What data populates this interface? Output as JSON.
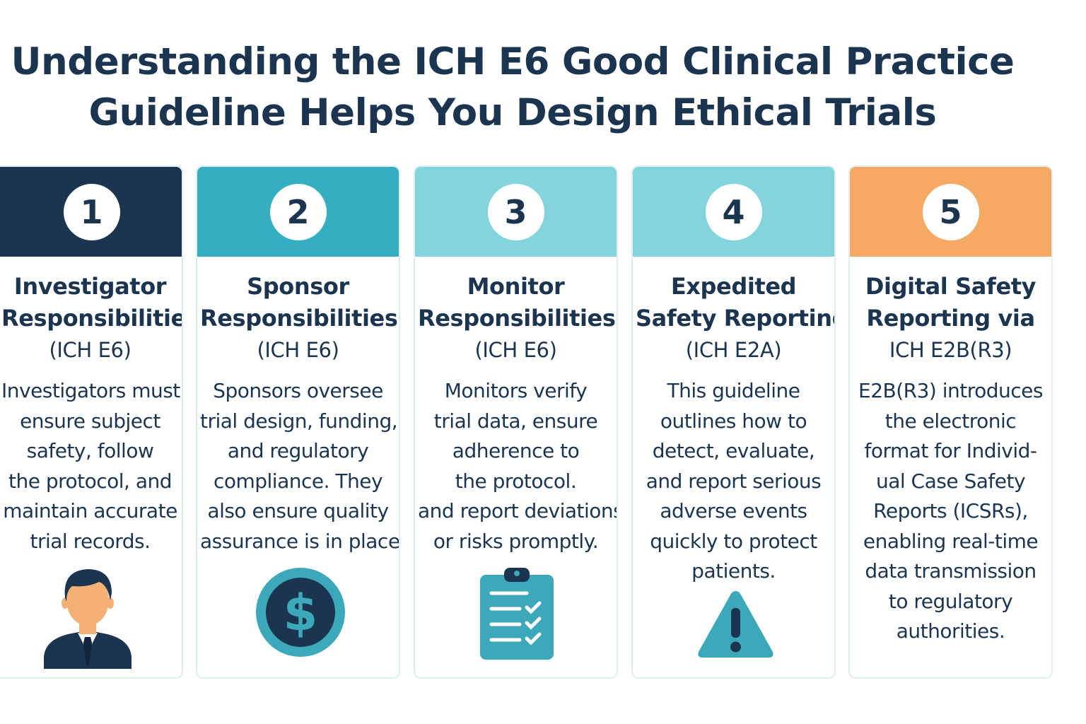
{
  "title": {
    "line1": "Understanding the ICH E6 Good Clinical Practice",
    "line2": "Guideline Helps You Design Ethical Trials"
  },
  "colors": {
    "navy": "#1b3550",
    "teal": "#36aec2",
    "light_teal": "#84d4dc",
    "orange": "#f5a963",
    "icon_teal": "#3ca9bb",
    "skin": "#f5b075"
  },
  "cards": [
    {
      "number": "1",
      "title_lines": [
        "Investigator",
        "Responsibilities",
        "(ICH E6)"
      ],
      "body_lines": [
        "Investigators must",
        "ensure subject",
        "safety, follow",
        "the protocol, and",
        "maintain accurate",
        "trial records."
      ],
      "icon": "investigator-person-icon"
    },
    {
      "number": "2",
      "title_lines": [
        "Sponsor",
        "Responsibilities",
        "(ICH E6)"
      ],
      "body_lines": [
        "Sponsors oversee",
        "trial design, funding,",
        "and regulatory",
        "compliance. They",
        "also ensure quality",
        "assurance is in place"
      ],
      "icon": "dollar-coin-icon"
    },
    {
      "number": "3",
      "title_lines": [
        "Monitor",
        "Responsibilities",
        "(ICH E6)"
      ],
      "body_lines": [
        "Monitors verify",
        "trial data, ensure",
        "adherence to",
        "the protocol.",
        "and report deviations",
        "or risks promptly."
      ],
      "icon": "clipboard-checklist-icon"
    },
    {
      "number": "4",
      "title_lines": [
        "Expedited",
        "Safety Reporting",
        "(ICH E2A)"
      ],
      "body_lines": [
        "This guideline",
        "outlines how to",
        "detect, evaluate,",
        "and report serious",
        "adverse events",
        "quickly to protect",
        "patients."
      ],
      "icon": "warning-triangle-icon"
    },
    {
      "number": "5",
      "title_lines": [
        "Digital Safety",
        "Reporting via",
        "ICH E2B(R3)"
      ],
      "body_lines": [
        "E2B(R3) introduces",
        "the electronic",
        "format for Individ-",
        "ual Case Safety",
        "Reports (ICSRs),",
        "enabling real-time",
        "data transmission",
        "to regulatory",
        "authorities."
      ],
      "icon": ""
    }
  ]
}
